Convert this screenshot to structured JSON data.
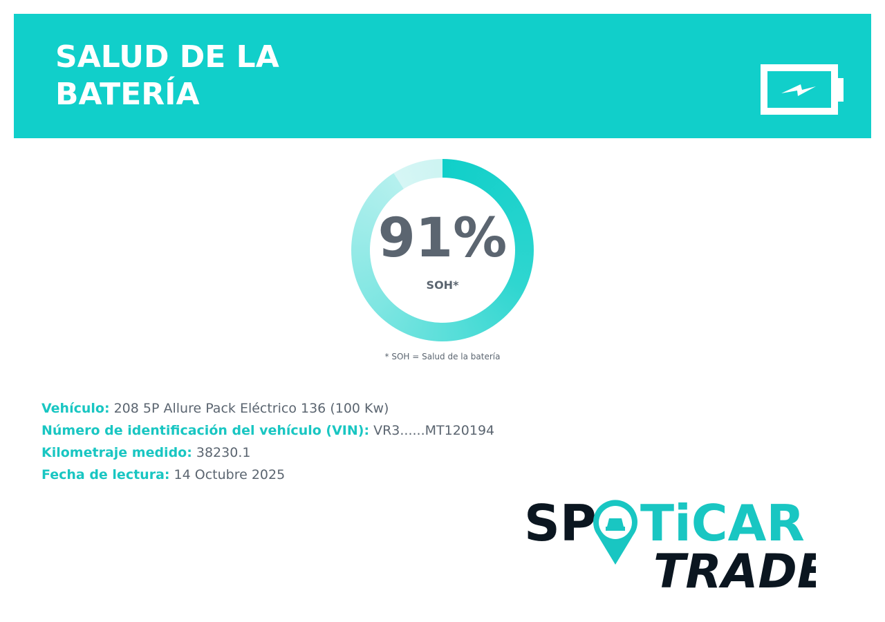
{
  "header": {
    "title": "SALUD DE LA BATERÍA"
  },
  "gauge": {
    "soh": {
      "value": 91,
      "label": "91%"
    },
    "caption": "SOH*",
    "footnote": "* SOH = Salud de la batería"
  },
  "details": [
    {
      "label": "Vehículo:",
      "value": "208 5P Allure Pack Eléctrico 136 (100 Kw)"
    },
    {
      "label": "Número de identificación del vehículo (VIN):",
      "value": "VR3......MT120194"
    },
    {
      "label": "Kilometraje medido:",
      "value": "38230.1"
    },
    {
      "label": "Fecha de lectura:",
      "value": "14 Octubre 2025"
    }
  ],
  "logo": {
    "left": "SP",
    "right": "TiCAR",
    "sub": "TRADE"
  }
}
